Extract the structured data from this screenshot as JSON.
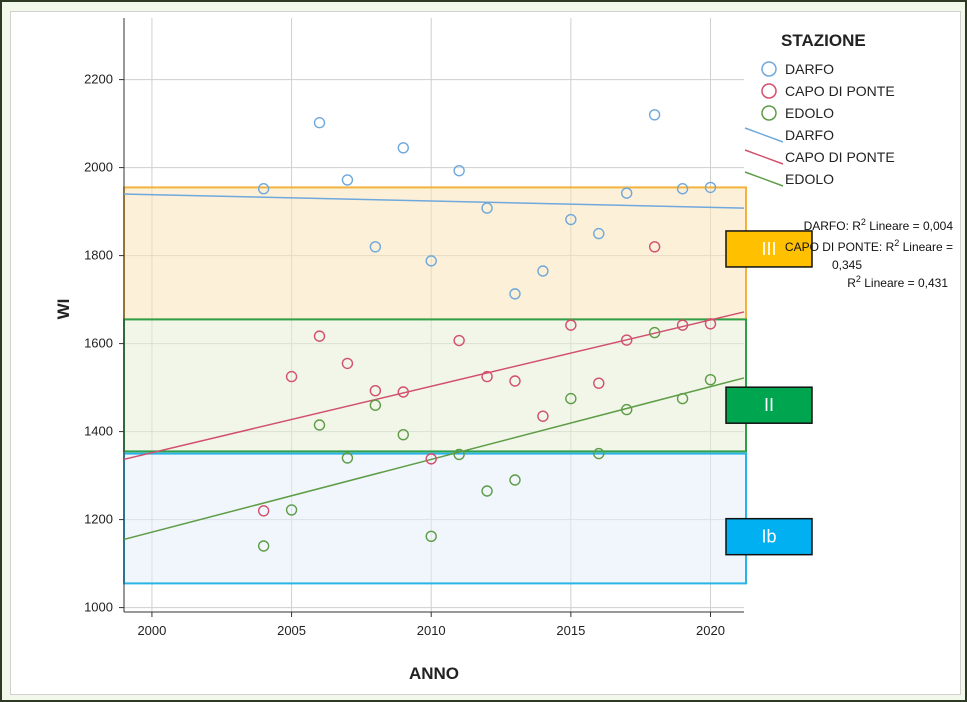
{
  "chart_data": {
    "type": "scatter",
    "xlabel": "ANNO",
    "ylabel": "WI",
    "xlim": [
      1999,
      2021.2
    ],
    "ylim": [
      990,
      2340
    ],
    "xticks": [
      2000,
      2005,
      2010,
      2015,
      2020
    ],
    "yticks": [
      1000,
      1200,
      1400,
      1600,
      1800,
      2000,
      2200
    ],
    "grid": true,
    "legend": {
      "title": "STAZIONE",
      "placement": "top-right",
      "markers": [
        "DARFO",
        "CAPO DI PONTE",
        "EDOLO"
      ],
      "lines": [
        "DARFO",
        "CAPO DI PONTE",
        "EDOLO"
      ]
    },
    "series": [
      {
        "name": "DARFO",
        "color": "#6fa8dc",
        "points": [
          [
            2004,
            1952
          ],
          [
            2006,
            2102
          ],
          [
            2007,
            1972
          ],
          [
            2008,
            1820
          ],
          [
            2009,
            2045
          ],
          [
            2010,
            1788
          ],
          [
            2011,
            1993
          ],
          [
            2012,
            1908
          ],
          [
            2013,
            1713
          ],
          [
            2014,
            1765
          ],
          [
            2015,
            1882
          ],
          [
            2016,
            1850
          ],
          [
            2017,
            1942
          ],
          [
            2018,
            2120
          ],
          [
            2019,
            1952
          ],
          [
            2020,
            1955
          ]
        ],
        "fit": [
          [
            1999,
            1940
          ],
          [
            2021.2,
            1908
          ]
        ]
      },
      {
        "name": "CAPO DI PONTE",
        "color": "#d2506e",
        "points": [
          [
            2004,
            1220
          ],
          [
            2005,
            1525
          ],
          [
            2006,
            1617
          ],
          [
            2007,
            1555
          ],
          [
            2008,
            1493
          ],
          [
            2009,
            1490
          ],
          [
            2010,
            1338
          ],
          [
            2011,
            1607
          ],
          [
            2012,
            1525
          ],
          [
            2013,
            1515
          ],
          [
            2014,
            1435
          ],
          [
            2015,
            1642
          ],
          [
            2016,
            1510
          ],
          [
            2017,
            1608
          ],
          [
            2018,
            1820
          ],
          [
            2019,
            1642
          ],
          [
            2020,
            1645
          ]
        ],
        "fit": [
          [
            1999,
            1337
          ],
          [
            2021.2,
            1672
          ]
        ]
      },
      {
        "name": "EDOLO",
        "color": "#5e9c46",
        "points": [
          [
            2004,
            1140
          ],
          [
            2005,
            1222
          ],
          [
            2006,
            1415
          ],
          [
            2007,
            1340
          ],
          [
            2008,
            1460
          ],
          [
            2009,
            1393
          ],
          [
            2010,
            1162
          ],
          [
            2011,
            1348
          ],
          [
            2012,
            1265
          ],
          [
            2013,
            1290
          ],
          [
            2015,
            1475
          ],
          [
            2016,
            1350
          ],
          [
            2017,
            1450
          ],
          [
            2018,
            1625
          ],
          [
            2019,
            1475
          ],
          [
            2020,
            1518
          ]
        ],
        "fit": [
          [
            1999,
            1155
          ],
          [
            2021.2,
            1522
          ]
        ]
      }
    ],
    "r2_annotation": {
      "line1": "DARFO: R",
      "line1_suffix": " Lineare = 0,004",
      "line2": "CAPO DI PONTE: R",
      "line2_suffix": " Lineare =",
      "line3": "0,345",
      "line4": "R",
      "line4_suffix": " Lineare = 0,431",
      "sup": "2"
    },
    "bands": [
      {
        "label": "III",
        "range": [
          1655,
          1955
        ],
        "fill": "#fbe3b8",
        "stroke": "#f2b33d",
        "box_color": "#ffc000"
      },
      {
        "label": "II",
        "range": [
          1355,
          1655
        ],
        "fill": "#e5efd7",
        "stroke": "#2ea04a",
        "box_color": "#00a550"
      },
      {
        "label": "Ib",
        "range": [
          1055,
          1350
        ],
        "fill": "#e3eef8",
        "stroke": "#28b4e6",
        "box_color": "#00b0f0"
      }
    ]
  }
}
